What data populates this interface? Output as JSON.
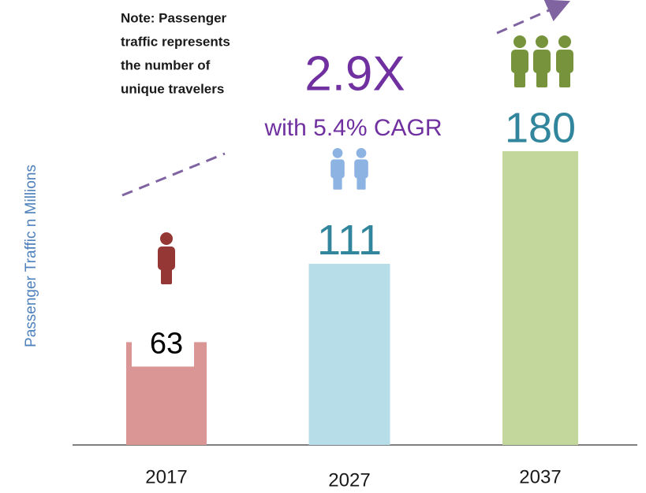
{
  "chart_data": {
    "type": "bar",
    "y_axis_label": "Passenger Traffic n  Millions",
    "note": [
      "Note: Passenger",
      "traffic represents",
      "the number of",
      "unique travelers"
    ],
    "annotations": [
      "2.9X",
      "with 5.4% CAGR"
    ],
    "categories": [
      "2017",
      "2027",
      "2037"
    ],
    "values": [
      63,
      111,
      180
    ],
    "colors": [
      "#d99694",
      "#b7dde8",
      "#c3d69b"
    ],
    "icon_colors": [
      "#953735",
      "#8db3e2",
      "#77933c"
    ]
  }
}
